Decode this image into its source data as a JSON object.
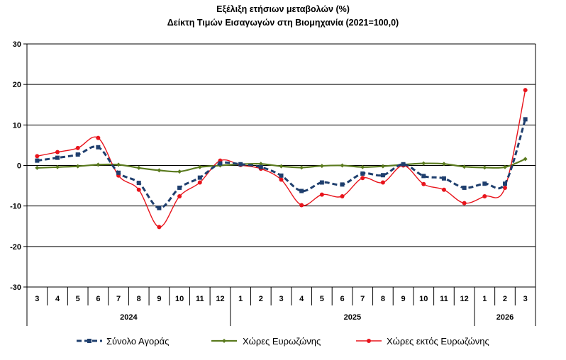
{
  "chart_data": {
    "type": "line",
    "title": "Εξέλιξη ετήσιων μεταβολών (%)",
    "subtitle": "Δείκτη Τιμών Εισαγωγών στη Βιομηχανία (2021=100,0)",
    "ylim": [
      -30,
      30
    ],
    "yticks": [
      30,
      20,
      10,
      0,
      -10,
      -20,
      -30
    ],
    "grid": true,
    "legend_position": "bottom",
    "categories": [
      "3",
      "4",
      "5",
      "6",
      "7",
      "8",
      "9",
      "10",
      "11",
      "12",
      "1",
      "2",
      "3",
      "4",
      "5",
      "6",
      "7",
      "8",
      "9",
      "10",
      "11",
      "12",
      "1",
      "2",
      "3"
    ],
    "year_groups": [
      {
        "label": "2024",
        "start": 0,
        "end": 9
      },
      {
        "label": "2025",
        "start": 10,
        "end": 21
      },
      {
        "label": "2026",
        "start": 22,
        "end": 24
      }
    ],
    "series": [
      {
        "name": "Σύνολο Αγοράς",
        "color": "#1f3f6e",
        "style": "dashed-square",
        "values": [
          1.2,
          1.9,
          2.7,
          4.5,
          -1.8,
          -4.3,
          -10.5,
          -5.5,
          -3.0,
          0.5,
          0.3,
          -0.4,
          -2.5,
          -6.3,
          -4.2,
          -4.7,
          -2.0,
          -2.4,
          0.3,
          -2.6,
          -3.2,
          -5.5,
          -4.5,
          -4.5,
          11.4
        ]
      },
      {
        "name": "Χώρες Ευρωζώνης",
        "color": "#5a7a1e",
        "style": "solid-diamond",
        "values": [
          -0.6,
          -0.4,
          -0.2,
          0.2,
          0.2,
          -0.6,
          -1.2,
          -1.5,
          -0.4,
          0.0,
          0.3,
          0.4,
          -0.2,
          -0.5,
          -0.1,
          0.0,
          -0.4,
          -0.2,
          0.2,
          0.5,
          0.4,
          -0.3,
          -0.5,
          -0.4,
          1.6
        ]
      },
      {
        "name": "Χώρες εκτός Ευρωζώνης",
        "color": "#e8141c",
        "style": "solid-circle",
        "values": [
          2.3,
          3.3,
          4.3,
          6.8,
          -2.5,
          -6.0,
          -15.2,
          -7.6,
          -4.2,
          1.2,
          0.1,
          -0.8,
          -3.5,
          -9.8,
          -7.2,
          -7.6,
          -3.1,
          -4.2,
          0.0,
          -4.6,
          -6.0,
          -9.3,
          -7.6,
          -5.5,
          18.6
        ]
      }
    ]
  }
}
